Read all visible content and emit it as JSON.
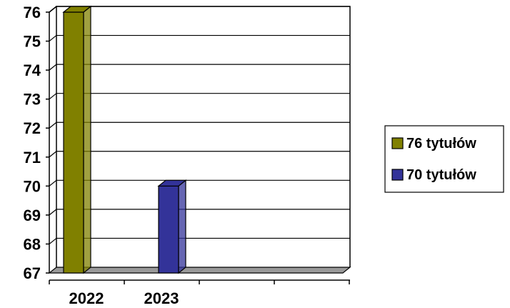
{
  "chart_data": {
    "type": "bar",
    "categories": [
      "2022",
      "2023"
    ],
    "series": [
      {
        "name": "76 tytułów",
        "values": [
          76,
          null
        ],
        "color": "#808000"
      },
      {
        "name": "70 tytułów",
        "values": [
          null,
          70
        ],
        "color": "#333399"
      }
    ],
    "ylim": [
      67,
      76
    ],
    "yticks": [
      76,
      75,
      74,
      73,
      72,
      71,
      70,
      69,
      68,
      67
    ],
    "grid": true,
    "legend_position": "right",
    "title": "",
    "xlabel": "",
    "ylabel": ""
  }
}
